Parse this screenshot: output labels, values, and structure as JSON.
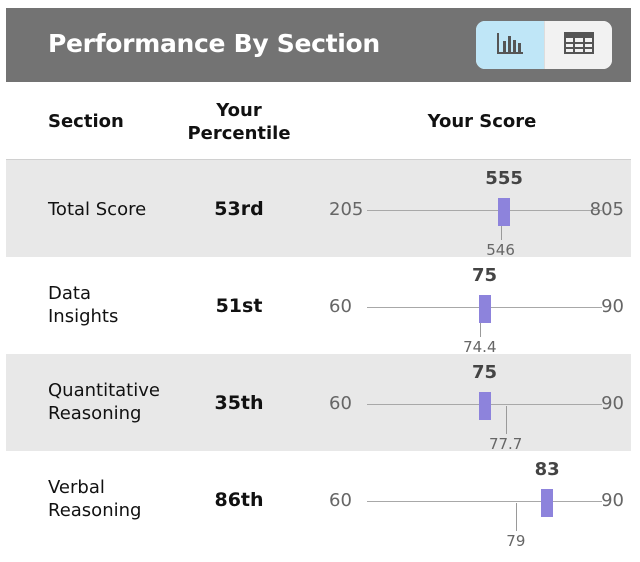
{
  "header": {
    "title": "Performance By Section",
    "view_toggle": {
      "chart_icon": "bar-chart-icon",
      "table_icon": "table-grid-icon",
      "selected": "chart"
    }
  },
  "columns": {
    "section": "Section",
    "percentile": "Your Percentile",
    "score": "Your Score"
  },
  "rows": [
    {
      "name": "Total Score",
      "percentile": "53rd",
      "min": 205,
      "max": 805,
      "score": 555,
      "avg": 546
    },
    {
      "name": "Data Insights",
      "percentile": "51st",
      "min": 60,
      "max": 90,
      "score": 75,
      "avg": 74.4
    },
    {
      "name": "Quantitative Reasoning",
      "percentile": "35th",
      "min": 60,
      "max": 90,
      "score": 75,
      "avg": 77.7
    },
    {
      "name": "Verbal Reasoning",
      "percentile": "86th",
      "min": 60,
      "max": 90,
      "score": 83,
      "avg": 79
    }
  ],
  "colors": {
    "header_bg": "#737373",
    "marker": "#8d83dc",
    "toggle_selected": "#bfe6f7",
    "row_shaded": "#e8e8e8"
  }
}
